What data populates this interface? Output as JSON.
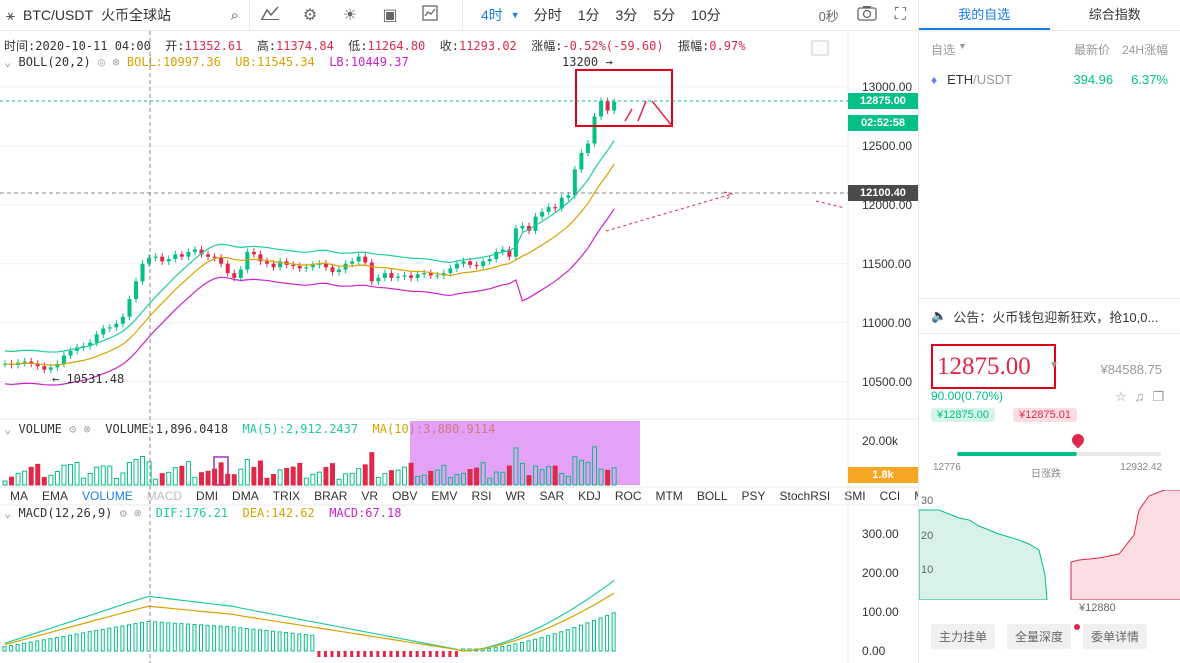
{
  "toolbar": {
    "pair": "BTC/USDT",
    "exchange": "火币全球站",
    "intervals": [
      "4时",
      "分时",
      "1分",
      "3分",
      "5分",
      "10分"
    ],
    "active_interval": "4时",
    "countdown": "0秒"
  },
  "ohlc": {
    "time_label": "时间:",
    "time": "2020-10-11 04:00",
    "open_label": "开:",
    "open": "11352.61",
    "high_label": "高:",
    "high": "11374.84",
    "low_label": "低:",
    "low": "11264.80",
    "close_label": "收:",
    "close": "11293.02",
    "change_label": "涨幅:",
    "change": "-0.52%(-59.60)",
    "amp_label": "振幅:",
    "amp": "0.97%"
  },
  "boll": {
    "name": "BOLL(20,2)",
    "boll": "BOLL:10997.36",
    "ub": "UB:11545.34",
    "lb": "LB:10449.37"
  },
  "volume_legend": {
    "name": "VOLUME",
    "volume": "VOLUME:1,896.0418",
    "ma5": "MA(5):2,912.2437",
    "ma10": "MA(10):3,880.9114"
  },
  "macd_legend": {
    "name": "MACD(12,26,9)",
    "dif": "DIF:176.21",
    "dea": "DEA:142.62",
    "macd": "MACD:67.18"
  },
  "price_axis": [
    "13000.00",
    "12500.00",
    "12000.00",
    "11500.00",
    "11000.00",
    "10500.00"
  ],
  "volume_axis": [
    "20.00k"
  ],
  "macd_axis": [
    "300.00",
    "200.00",
    "100.00",
    "0.00"
  ],
  "tags": {
    "last_price": "12875.00",
    "countdown": "02:52:58",
    "crosshair": "12100.40",
    "volume_tag": "1.8k",
    "high_mark": "13200 →",
    "low_mark": "← 10531.48"
  },
  "indicators": [
    "MA",
    "EMA",
    "VOLUME",
    "MACD",
    "DMI",
    "DMA",
    "TRIX",
    "BRAR",
    "VR",
    "OBV",
    "EMV",
    "RSI",
    "WR",
    "SAR",
    "KDJ",
    "ROC",
    "MTM",
    "BOLL",
    "PSY",
    "StochRSI",
    "SMI",
    "CCI",
    "MFI"
  ],
  "active_indicator": "VOLUME",
  "disabled_indicator": "MACD",
  "sidebar": {
    "tab_watchlist": "我的自选",
    "tab_index": "综合指数",
    "col_select": "自选",
    "col_price": "最新价",
    "col_change": "24H涨幅",
    "watch_symbol": "ETH",
    "watch_quote": "/USDT",
    "watch_price": "394.96",
    "watch_change": "6.37%",
    "notice": "公告：火币钱包迎新狂欢，抢10,0...",
    "big_price": "12875.00",
    "cny_price": "¥84588.75",
    "change_today": "90.00(0.70%)",
    "bid_tag": "¥12875.00",
    "ask_tag": "¥12875.01",
    "range_low": "12776",
    "range_label": "日涨跌",
    "range_high": "12932.42",
    "depth_ticks": [
      "30",
      "20",
      "10"
    ],
    "depth_price": "¥12880",
    "bottom_tabs": [
      "主力挂单",
      "全量深度",
      "委单详情"
    ]
  },
  "colors": {
    "up": "#03c087",
    "down": "#e0294a",
    "accent": "#1a7ee8",
    "boll_mid": "#d8a300",
    "boll_ub": "#1fcc9f",
    "boll_lb": "#cc22cc"
  }
}
